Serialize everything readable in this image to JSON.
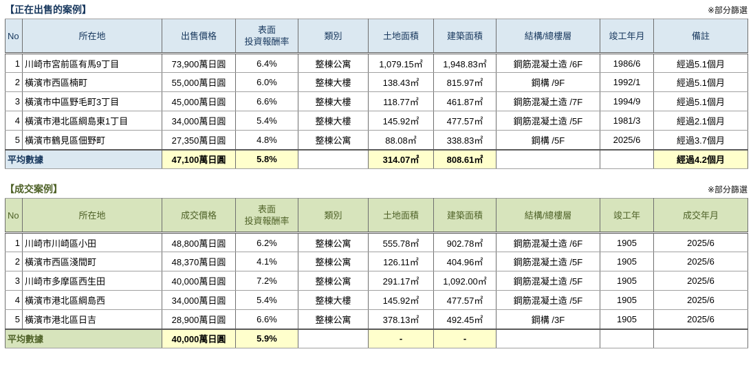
{
  "colors": {
    "selling_accent": "#17375D",
    "selling_header_bg": "#DBE8F1",
    "sold_accent": "#4F6228",
    "sold_header_bg": "#D7E4BC",
    "average_highlight": "#FFFFCC"
  },
  "selling": {
    "title": "【正在出售的案例】",
    "filter_note": "※部分篩選",
    "headers": [
      "No",
      "所在地",
      "出售價格",
      "表面\n投資報酬率",
      "類別",
      "土地面積",
      "建築面積",
      "結構/總樓層",
      "竣工年月",
      "備註"
    ],
    "rows": [
      [
        "1",
        "川崎市宮前區有馬9丁目",
        "73,900萬日圓",
        "6.4%",
        "整棟公寓",
        "1,079.15㎡",
        "1,948.83㎡",
        "鋼筋混凝土造 /6F",
        "1986/6",
        "經過5.1個月"
      ],
      [
        "2",
        "橫濱市西區楠町",
        "55,000萬日圓",
        "6.0%",
        "整棟大樓",
        "138.43㎡",
        "815.97㎡",
        "鋼構 /9F",
        "1992/1",
        "經過5.1個月"
      ],
      [
        "3",
        "橫濱市中區野毛町3丁目",
        "45,000萬日圓",
        "6.6%",
        "整棟大樓",
        "118.77㎡",
        "461.87㎡",
        "鋼筋混凝土造 /7F",
        "1994/9",
        "經過5.1個月"
      ],
      [
        "4",
        "橫濱市港北區綱島東1丁目",
        "34,000萬日圓",
        "5.4%",
        "整棟大樓",
        "145.92㎡",
        "477.57㎡",
        "鋼筋混凝土造 /5F",
        "1981/3",
        "經過2.1個月"
      ],
      [
        "5",
        "橫濱市鶴見區佃野町",
        "27,350萬日圓",
        "4.8%",
        "整棟公寓",
        "88.08㎡",
        "338.83㎡",
        "鋼構 /5F",
        "2025/6",
        "經過3.7個月"
      ]
    ],
    "average": {
      "label": "平均數據",
      "price": "47,100萬日圓",
      "yield_rate": "5.8%",
      "land_area": "314.07㎡",
      "building_area": "808.61㎡",
      "note": "經過4.2個月"
    }
  },
  "sold": {
    "title": "【成交案例】",
    "filter_note": "※部分篩選",
    "headers": [
      "No",
      "所在地",
      "成交價格",
      "表面\n投資報酬率",
      "類別",
      "土地面積",
      "建築面積",
      "結構/總樓層",
      "竣工年",
      "成交年月"
    ],
    "rows": [
      [
        "1",
        "川崎市川崎區小田",
        "48,800萬日圓",
        "6.2%",
        "整棟公寓",
        "555.78㎡",
        "902.78㎡",
        "鋼筋混凝土造 /6F",
        "1905",
        "2025/6"
      ],
      [
        "2",
        "橫濱市西區淺間町",
        "48,370萬日圓",
        "4.1%",
        "整棟公寓",
        "126.11㎡",
        "404.96㎡",
        "鋼筋混凝土造 /5F",
        "1905",
        "2025/6"
      ],
      [
        "3",
        "川崎市多摩區西生田",
        "40,000萬日圓",
        "7.2%",
        "整棟公寓",
        "291.17㎡",
        "1,092.00㎡",
        "鋼筋混凝土造 /5F",
        "1905",
        "2025/6"
      ],
      [
        "4",
        "橫濱市港北區綱島西",
        "34,000萬日圓",
        "5.4%",
        "整棟大樓",
        "145.92㎡",
        "477.57㎡",
        "鋼筋混凝土造 /5F",
        "1905",
        "2025/6"
      ],
      [
        "5",
        "橫濱市港北區日吉",
        "28,900萬日圓",
        "6.6%",
        "整棟公寓",
        "378.13㎡",
        "492.45㎡",
        "鋼構 /3F",
        "1905",
        "2025/6"
      ]
    ],
    "average": {
      "label": "平均數據",
      "price": "40,000萬日圓",
      "yield_rate": "5.9%",
      "land_area": "-",
      "building_area": "-"
    }
  }
}
